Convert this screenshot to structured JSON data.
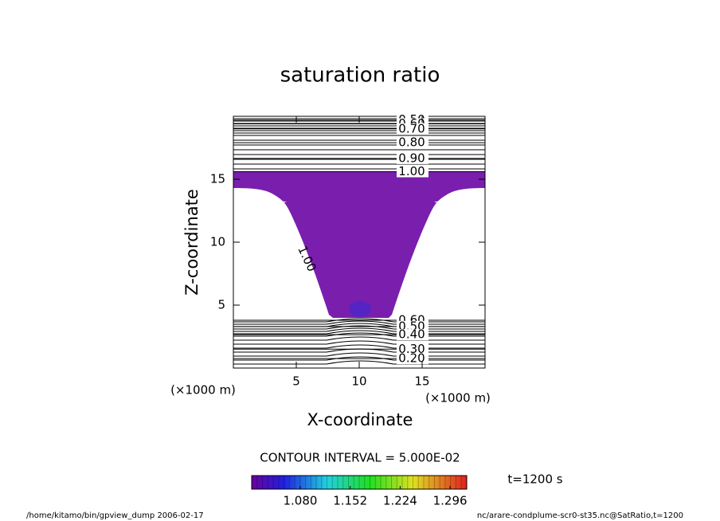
{
  "chart_data": {
    "type": "contour",
    "title": "saturation ratio",
    "xlabel": "X-coordinate",
    "ylabel": "Z-coordinate",
    "xunit": "(×1000 m)",
    "yunit": "(×1000 m)",
    "xlim": [
      0,
      20
    ],
    "ylim": [
      0,
      20
    ],
    "xticks": [
      5,
      10,
      15
    ],
    "yticks": [
      5,
      10,
      15
    ],
    "contours": [
      {
        "value": 0.5,
        "label": "0.50",
        "z": 19.7
      },
      {
        "value": 0.6,
        "label": "0.60",
        "z": 19.4
      },
      {
        "value": 0.7,
        "label": "0.70",
        "z": 19.0
      },
      {
        "value": 0.8,
        "label": "0.80",
        "z": 17.9
      },
      {
        "value": 0.9,
        "label": "0.90",
        "z": 16.65
      },
      {
        "value": 1.0,
        "label": "1.00",
        "z": 15.6
      },
      {
        "value": 0.6,
        "label": "0.60",
        "z": 3.8
      },
      {
        "value": 0.5,
        "label": "0.50",
        "z": 3.3
      },
      {
        "value": 0.4,
        "label": "0.40",
        "z": 2.65
      },
      {
        "value": 0.3,
        "label": "0.30",
        "z": 1.5
      },
      {
        "value": 0.2,
        "label": "0.20",
        "z": 0.75
      }
    ],
    "inner_label": "1.00",
    "fill_color": "#7a1eae",
    "contour_interval": "CONTOUR INTERVAL = 5.000E-02",
    "time_label": "t=1200 s",
    "colorbar": {
      "clim": [
        1.01,
        1.32
      ],
      "ticks": [
        {
          "value": 1.08,
          "label": "1.080"
        },
        {
          "value": 1.152,
          "label": "1.152"
        },
        {
          "value": 1.224,
          "label": "1.224"
        },
        {
          "value": 1.296,
          "label": "1.296"
        }
      ]
    },
    "footer_left": "/home/kitamo/bin/gpview_dump  2006-02-17",
    "footer_right": "nc/arare-condplume-scr0-st35.nc@SatRatio,t=1200"
  }
}
